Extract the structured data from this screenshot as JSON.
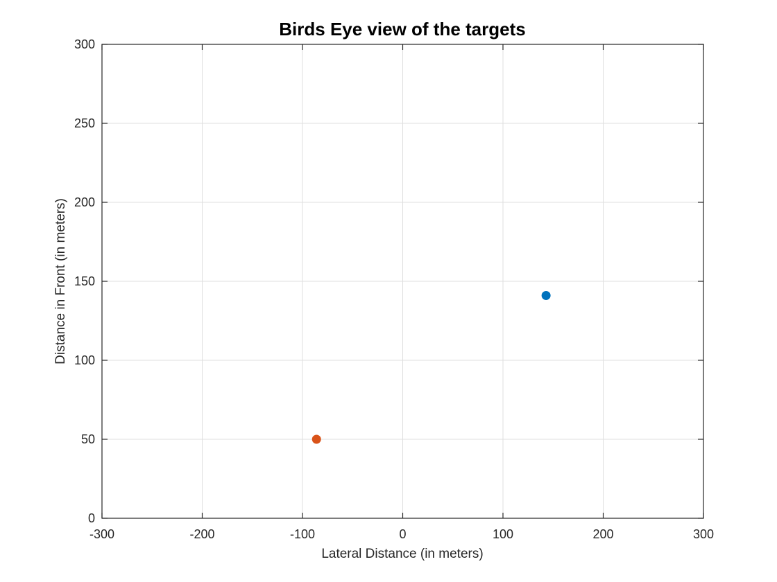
{
  "chart_data": {
    "type": "scatter",
    "title": "Birds Eye view of the targets",
    "xlabel": "Lateral Distance (in meters)",
    "ylabel": "Distance in Front (in meters)",
    "xlim": [
      -300,
      300
    ],
    "ylim": [
      0,
      300
    ],
    "xticks": [
      -300,
      -200,
      -100,
      0,
      100,
      200,
      300
    ],
    "yticks": [
      0,
      50,
      100,
      150,
      200,
      250,
      300
    ],
    "xtick_labels": [
      "-300",
      "-200",
      "-100",
      "0",
      "100",
      "200",
      "300"
    ],
    "ytick_labels": [
      "0",
      "50",
      "100",
      "150",
      "200",
      "250",
      "300"
    ],
    "grid": true,
    "series": [
      {
        "color": "#0072BD",
        "points": [
          {
            "x": 143,
            "y": 141
          }
        ]
      },
      {
        "color": "#D95319",
        "points": [
          {
            "x": -86,
            "y": 50
          }
        ]
      }
    ]
  }
}
